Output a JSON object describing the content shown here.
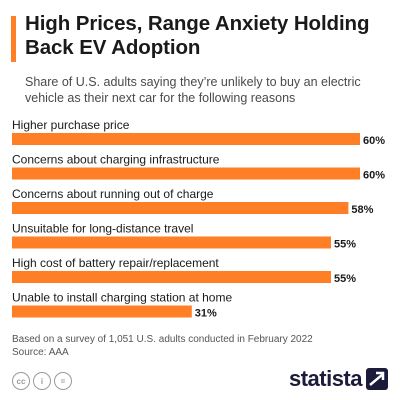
{
  "header": {
    "title": "High Prices, Range Anxiety Holding Back EV Adoption",
    "subtitle": "Share of U.S. adults saying they’re unlikely to buy an electric vehicle as their next car for the following reasons"
  },
  "chart_data": {
    "type": "bar",
    "orientation": "horizontal",
    "categories": [
      "Higher purchase price",
      "Concerns about charging infrastructure",
      "Concerns about running out of charge",
      "Unsuitable for long-distance travel",
      "High cost of battery repair/replacement",
      "Unable to install charging station at home"
    ],
    "values": [
      60,
      60,
      58,
      55,
      55,
      31
    ],
    "value_labels": [
      "60%",
      "60%",
      "58%",
      "55%",
      "55%",
      "31%"
    ],
    "unit": "%",
    "xlim": [
      0,
      60
    ],
    "grid": false,
    "legend": "none",
    "bar_color": "#ff7f27"
  },
  "footer": {
    "note": "Based on a survey of 1,051 U.S. adults conducted in February 2022",
    "source": "Source: AAA",
    "license_icons": [
      "cc-icon",
      "attribution-icon",
      "no-derivatives-icon"
    ],
    "license_glyphs": [
      "cc",
      "i",
      "="
    ],
    "brand": "statista"
  },
  "colors": {
    "accent": "#ff7f27",
    "title": "#1a1a1a",
    "brand": "#1b1b3a"
  }
}
